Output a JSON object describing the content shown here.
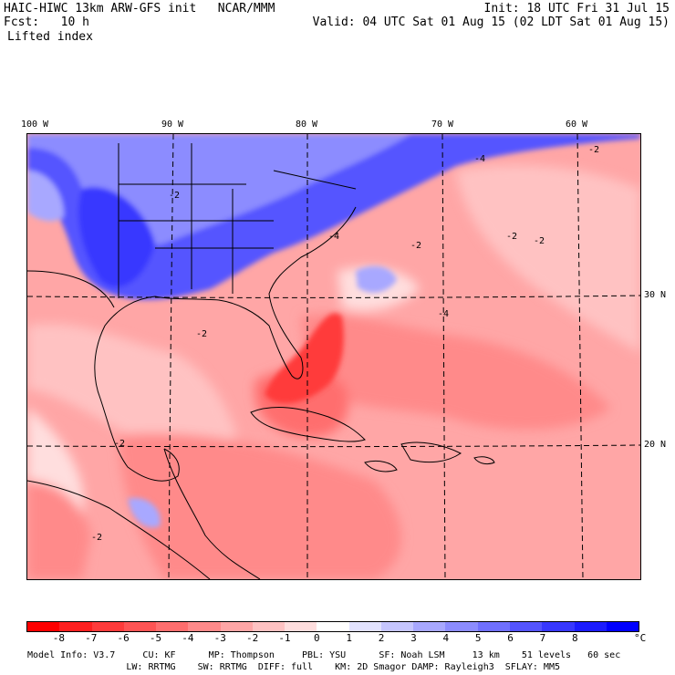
{
  "header": {
    "line1_left": "HAIC-HIWC 13km ARW-GFS init   NCAR/MMM",
    "line1_right": "Init: 18 UTC Fri 31 Jul 15",
    "line2_left": "Fcst:   10 h",
    "line2_right": "Valid: 04 UTC Sat 01 Aug 15 (02 LDT Sat 01 Aug 15)",
    "field_name": "Lifted index"
  },
  "map": {
    "longitude_labels": [
      "100 W",
      "90 W",
      "80 W",
      "70 W",
      "60 W"
    ],
    "latitude_labels": [
      "30 N",
      "20 N"
    ],
    "contour_labels": [
      "-2",
      "-4",
      "-2",
      "-2",
      "-4",
      "-2",
      "-2",
      "-2",
      "-2",
      "-2",
      "-4"
    ]
  },
  "colorbar": {
    "colors": [
      "#ff0000",
      "#ff2020",
      "#ff3b3b",
      "#ff5454",
      "#ff6e6e",
      "#ff8a8a",
      "#ffa6a6",
      "#ffc2c2",
      "#ffdede",
      "#ffffff",
      "#e2e2ff",
      "#c6c6ff",
      "#a8a8ff",
      "#8c8cff",
      "#7070ff",
      "#5454ff",
      "#3838ff",
      "#1c1cff",
      "#0000ff"
    ],
    "ticks": [
      "-8",
      "-7",
      "-6",
      "-5",
      "-4",
      "-3",
      "-2",
      "-1",
      "0",
      "1",
      "2",
      "3",
      "4",
      "5",
      "6",
      "7",
      "8"
    ],
    "unit": "°C"
  },
  "footer": {
    "line1": "Model Info: V3.7     CU: KF      MP: Thompson     PBL: YSU      SF: Noah LSM     13 km    51 levels   60 sec",
    "line2": "                  LW: RRTMG    SW: RRTMG  DIFF: full    KM: 2D Smagor DAMP: Rayleigh3  SFLAY: MM5"
  }
}
